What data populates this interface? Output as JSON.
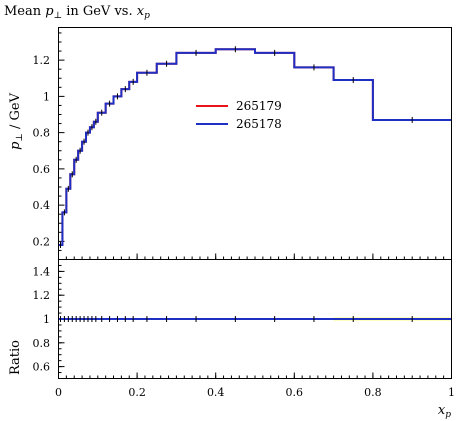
{
  "chart_data": {
    "type": "line",
    "title": "Mean p⊥ in GeV vs. xp",
    "title_parts": {
      "pre": "Mean ",
      "var": "p",
      "sub": "⊥",
      "post": " in GeV vs. ",
      "xvar": "x",
      "xsub": "p"
    },
    "ylabel": "p⊥ / GeV",
    "ylabel_parts": {
      "var": "p",
      "sub": "⊥",
      "post": " / GeV"
    },
    "xlabel": "xp",
    "xlabel_parts": {
      "var": "x",
      "sub": "p"
    },
    "ratio_ylabel": "Ratio",
    "xlim": [
      0,
      1
    ],
    "ylim": [
      0.1,
      1.38
    ],
    "ratio_ylim": [
      0.5,
      1.5
    ],
    "xticks": [
      "0",
      "0.2",
      "0.4",
      "0.6",
      "0.8",
      "1"
    ],
    "yticks": [
      "0.2",
      "0.4",
      "0.6",
      "0.8",
      "1",
      "1.2"
    ],
    "ratio_yticks": [
      "0.6",
      "0.8",
      "1",
      "1.2",
      "1.4"
    ],
    "legend_position": "center",
    "bin_edges": [
      0,
      0.01,
      0.02,
      0.03,
      0.04,
      0.05,
      0.06,
      0.07,
      0.08,
      0.09,
      0.1,
      0.12,
      0.14,
      0.16,
      0.18,
      0.2,
      0.25,
      0.3,
      0.4,
      0.5,
      0.6,
      0.7,
      0.8,
      1.0
    ],
    "series": [
      {
        "name": "265179",
        "color": "#e8141a",
        "values": [
          0.18,
          0.36,
          0.49,
          0.57,
          0.65,
          0.7,
          0.75,
          0.8,
          0.83,
          0.86,
          0.91,
          0.96,
          1.0,
          1.04,
          1.08,
          1.13,
          1.18,
          1.24,
          1.26,
          1.24,
          1.16,
          1.09,
          0.87
        ]
      },
      {
        "name": "265178",
        "color": "#1e2fc4",
        "values": [
          0.18,
          0.36,
          0.49,
          0.57,
          0.65,
          0.7,
          0.75,
          0.8,
          0.83,
          0.86,
          0.91,
          0.96,
          1.0,
          1.04,
          1.08,
          1.13,
          1.18,
          1.24,
          1.26,
          1.24,
          1.16,
          1.09,
          0.87
        ]
      }
    ],
    "ratio": {
      "values": [
        1,
        1,
        1,
        1,
        1,
        1,
        1,
        1,
        1,
        1,
        1,
        1,
        1,
        1,
        1,
        1,
        1,
        1,
        1,
        1,
        1,
        1,
        1
      ],
      "band_color": "#ffff00"
    }
  }
}
